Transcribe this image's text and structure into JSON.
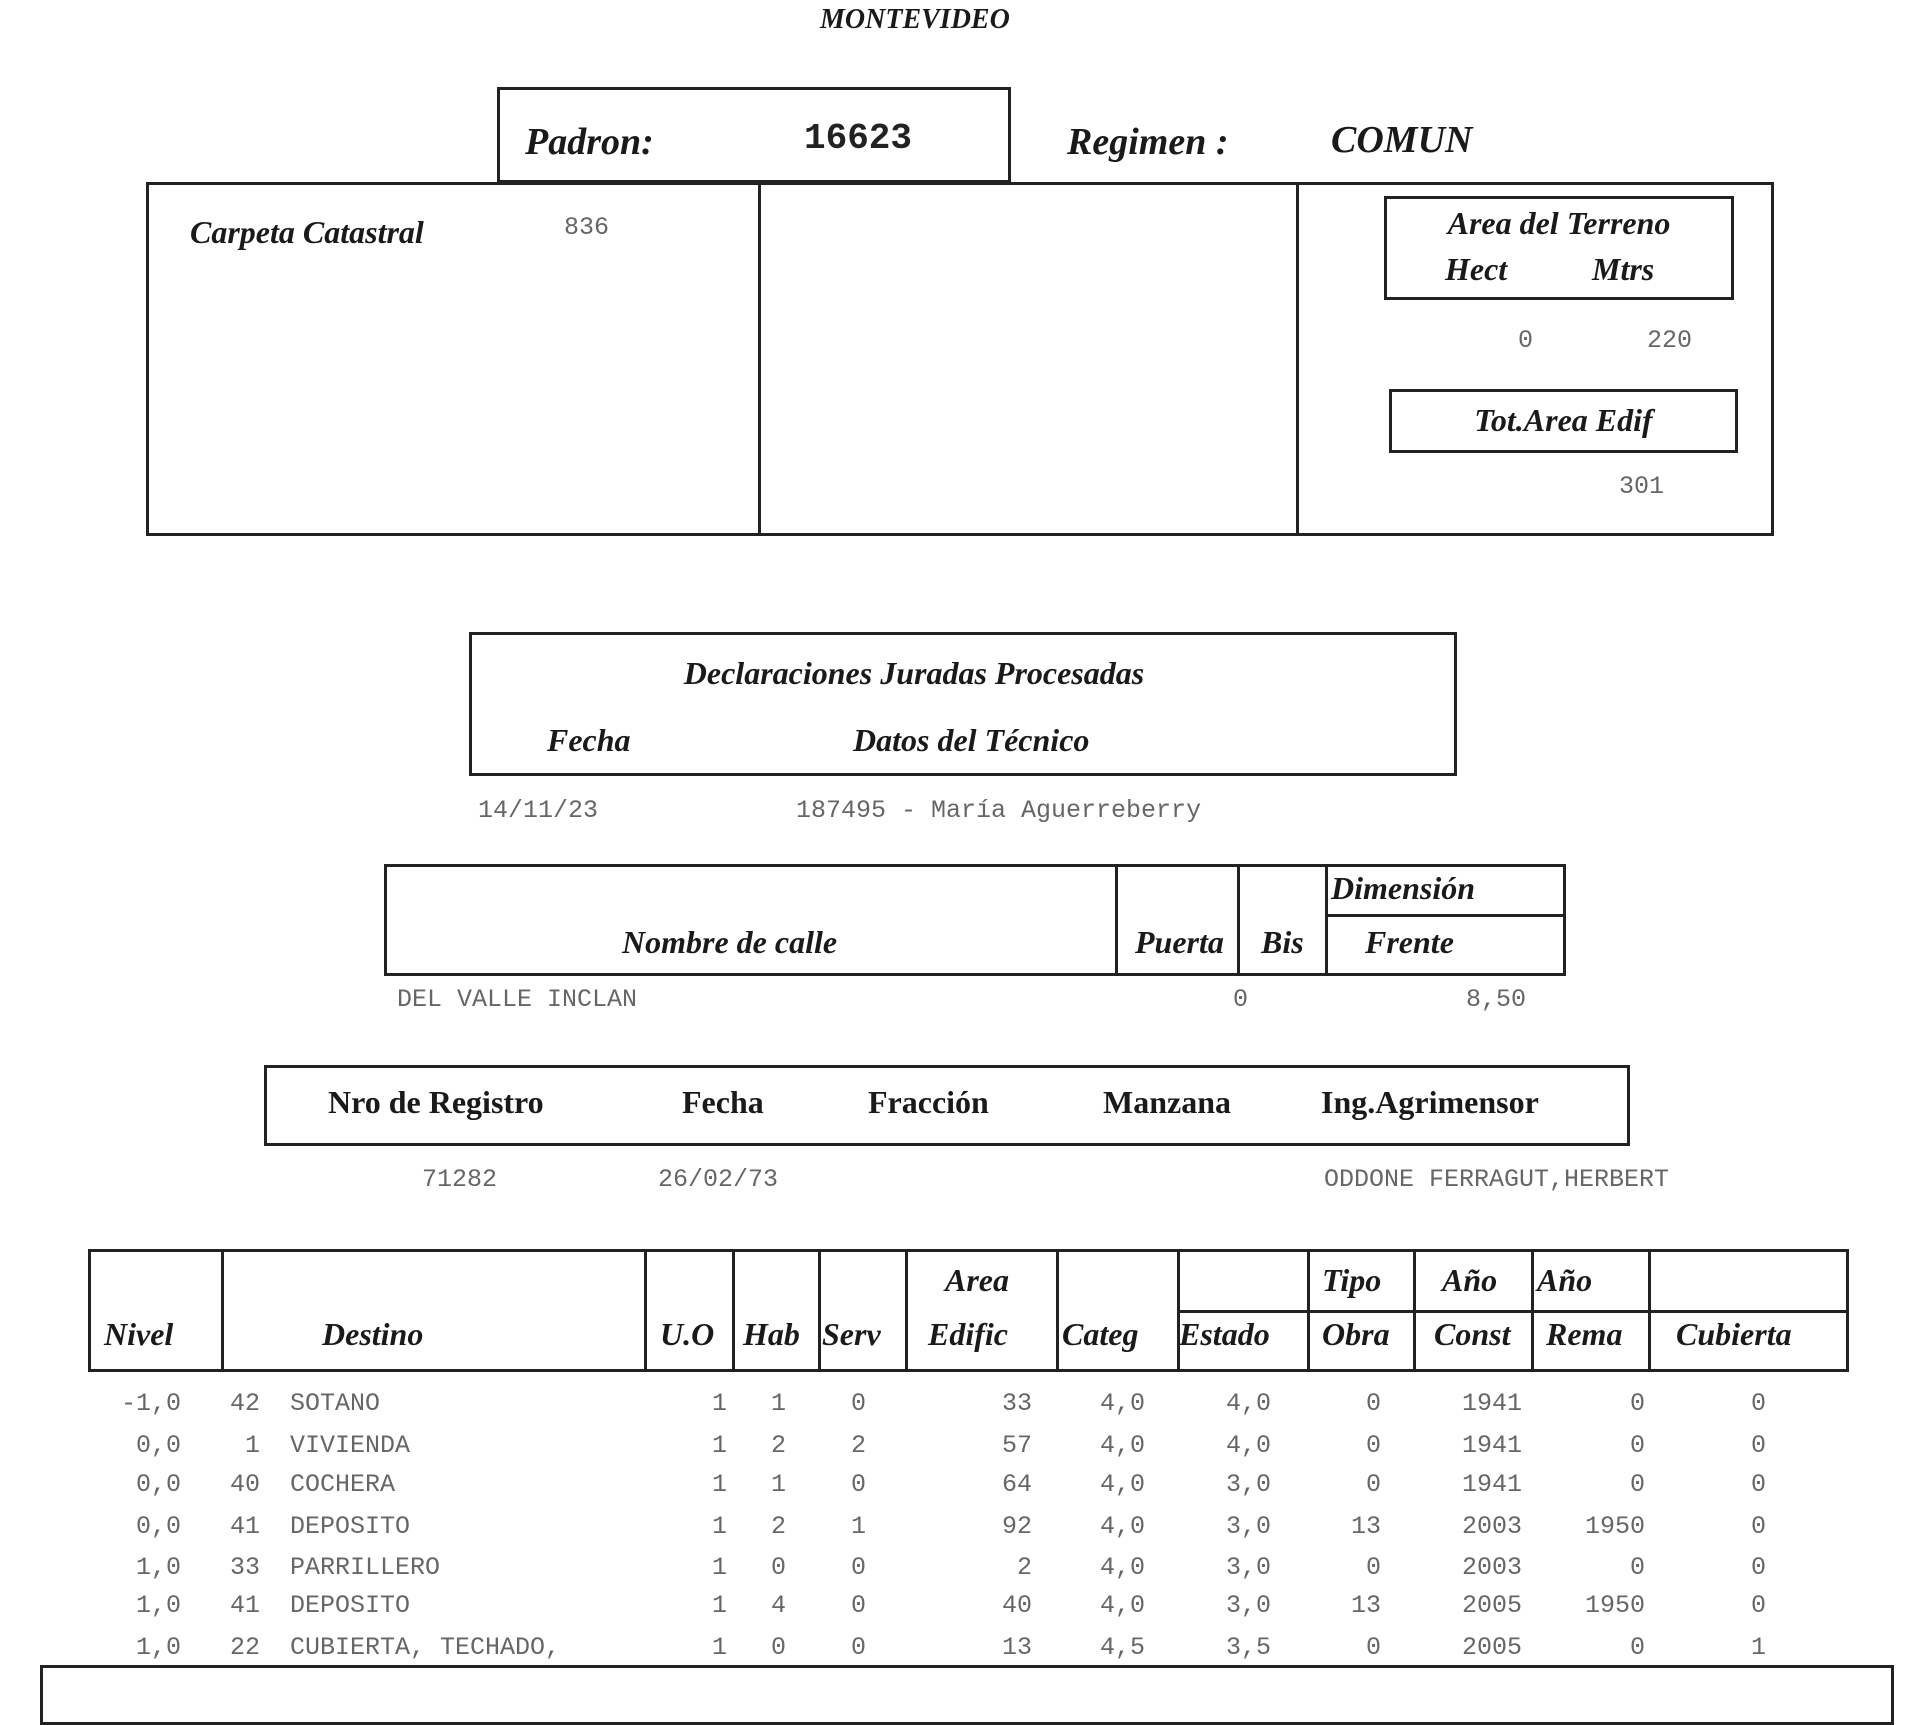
{
  "title": "MONTEVIDEO",
  "padron": {
    "label": "Padron:",
    "value": "16623"
  },
  "regimen": {
    "label": "Regimen :",
    "value": "COMUN"
  },
  "carpeta": {
    "label": "Carpeta Catastral",
    "value": "836"
  },
  "area_terreno": {
    "label": "Area del Terreno",
    "hect_label": "Hect",
    "mtrs_label": "Mtrs",
    "hect": "0",
    "mtrs": "220"
  },
  "tot_area": {
    "label": "Tot.Area Edif",
    "value": "301"
  },
  "declaraciones": {
    "title": "Declaraciones Juradas Procesadas",
    "fecha_label": "Fecha",
    "tecnico_label": "Datos del Técnico",
    "fecha": "14/11/23",
    "tecnico": "187495 - María Aguerreberry"
  },
  "calle": {
    "nombre_label": "Nombre de calle",
    "puerta_label": "Puerta",
    "bis_label": "Bis",
    "dimension_label": "Dimensión",
    "frente_label": "Frente",
    "nombre": "DEL VALLE INCLAN",
    "puerta": "0",
    "frente": "8,50"
  },
  "registro": {
    "nro_label": "Nro de Registro",
    "fecha_label": "Fecha",
    "fraccion_label": "Fracción",
    "manzana_label": "Manzana",
    "agrimensor_label": "Ing.Agrimensor",
    "nro": "71282",
    "fecha": "26/02/73",
    "agrimensor": "ODDONE FERRAGUT,HERBERT"
  },
  "unidades": {
    "headers": {
      "nivel": "Nivel",
      "destino": "Destino",
      "uo": "U.O",
      "hab": "Hab",
      "serv": "Serv",
      "area1": "Area",
      "area2": "Edific",
      "categ": "Categ",
      "estado": "Estado",
      "tipo1": "Tipo",
      "tipo2": "Obra",
      "const1": "Año",
      "const2": "Const",
      "rema1": "Año",
      "rema2": "Rema",
      "cubierta": "Cubierta"
    },
    "rows": [
      [
        "-1,0",
        "42",
        "SOTANO",
        "1",
        "1",
        "0",
        "33",
        "4,0",
        "4,0",
        "0",
        "1941",
        "0",
        "0"
      ],
      [
        "0,0",
        "1",
        "VIVIENDA",
        "1",
        "2",
        "2",
        "57",
        "4,0",
        "4,0",
        "0",
        "1941",
        "0",
        "0"
      ],
      [
        "0,0",
        "40",
        "COCHERA",
        "1",
        "1",
        "0",
        "64",
        "4,0",
        "3,0",
        "0",
        "1941",
        "0",
        "0"
      ],
      [
        "0,0",
        "41",
        "DEPOSITO",
        "1",
        "2",
        "1",
        "92",
        "4,0",
        "3,0",
        "13",
        "2003",
        "1950",
        "0"
      ],
      [
        "1,0",
        "33",
        "PARRILLERO",
        "1",
        "0",
        "0",
        "2",
        "4,0",
        "3,0",
        "0",
        "2003",
        "0",
        "0"
      ],
      [
        "1,0",
        "41",
        "DEPOSITO",
        "1",
        "4",
        "0",
        "40",
        "4,0",
        "3,0",
        "13",
        "2005",
        "1950",
        "0"
      ],
      [
        "1,0",
        "22",
        "CUBIERTA, TECHADO,",
        "1",
        "0",
        "0",
        "13",
        "4,5",
        "3,5",
        "0",
        "2005",
        "0",
        "1"
      ]
    ]
  }
}
